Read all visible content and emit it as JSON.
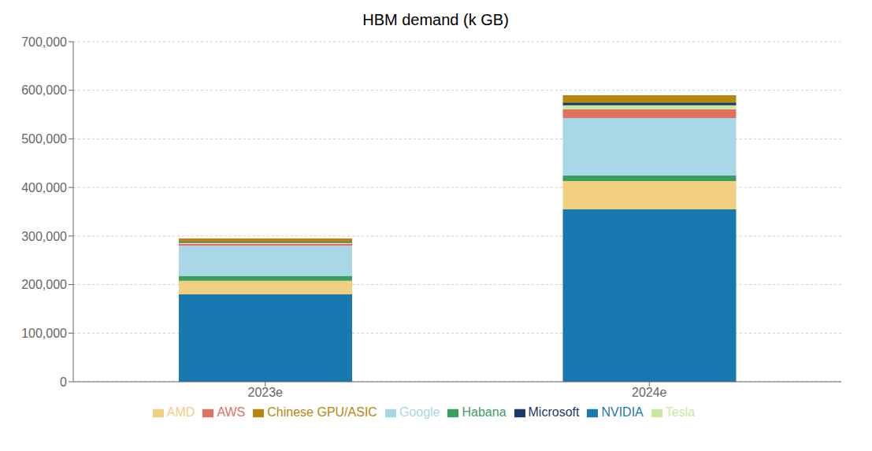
{
  "chart_data": {
    "type": "bar",
    "title": "HBM demand (k GB)",
    "categories": [
      "2023e",
      "2024e"
    ],
    "series": [
      {
        "name": "NVIDIA",
        "values": [
          180000,
          355000
        ],
        "color": "#1878b0"
      },
      {
        "name": "AMD",
        "values": [
          28000,
          58000
        ],
        "color": "#f0d080"
      },
      {
        "name": "Habana",
        "values": [
          10000,
          12000
        ],
        "color": "#3a9e5f"
      },
      {
        "name": "Google",
        "values": [
          62000,
          118000
        ],
        "color": "#a8d8e8"
      },
      {
        "name": "AWS",
        "values": [
          4000,
          18000
        ],
        "color": "#e07060"
      },
      {
        "name": "Tesla",
        "values": [
          2000,
          8000
        ],
        "color": "#c8e8a0"
      },
      {
        "name": "Microsoft",
        "values": [
          2000,
          6000
        ],
        "color": "#1a3a6b"
      },
      {
        "name": "Chinese GPU/ASIC",
        "values": [
          7000,
          15000
        ],
        "color": "#b8860b"
      }
    ],
    "ylim": [
      0,
      700000
    ],
    "yticks": [
      0,
      {
        "value": 100000,
        "label": "100,000"
      },
      {
        "value": 200000,
        "label": "200,000"
      },
      {
        "value": 300000,
        "label": "300,000"
      },
      {
        "value": 400000,
        "label": "400,000"
      },
      {
        "value": 500000,
        "label": "500,000"
      },
      {
        "value": 600000,
        "label": "600,000"
      },
      {
        "value": 700000,
        "label": "700,000"
      }
    ],
    "stacked": true,
    "grid": true,
    "legend": "bottom"
  }
}
